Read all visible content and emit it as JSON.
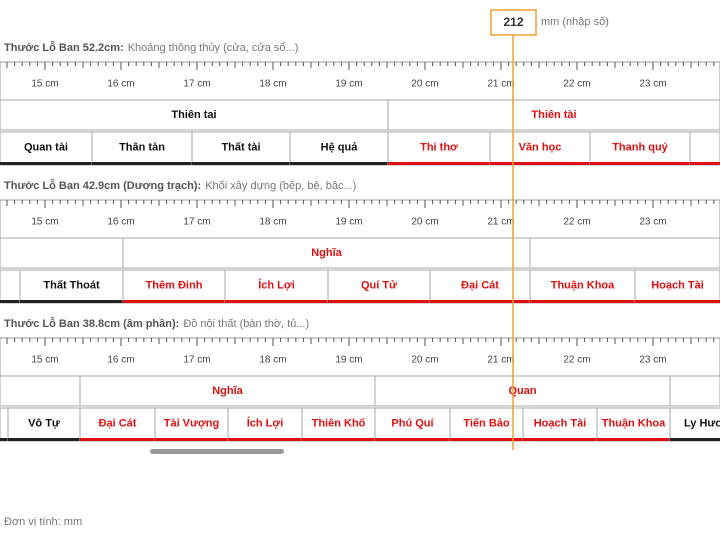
{
  "input": {
    "value": "212",
    "unit": "mm (nhập số)"
  },
  "scale_labels": [
    "15 cm",
    "16 cm",
    "17 cm",
    "18 cm",
    "19 cm",
    "20 cm",
    "21 cm",
    "22 cm",
    "23 cm"
  ],
  "rulers": [
    {
      "title": "Thước Lỗ Ban 52.2cm:",
      "subtitle": "Khoảng thông thủy (cửa, cửa sổ...)",
      "top": [
        "Thiên tai",
        "Thiên tài"
      ],
      "bottom": [
        "Quan tài",
        "Thân tàn",
        "Thất tài",
        "Hệ quả",
        "Thi thơ",
        "Văn học",
        "Thanh quý"
      ]
    },
    {
      "title": "Thước Lỗ Ban 42.9cm (Dương trạch):",
      "subtitle": "Khối xây dựng (bếp, bệ, bậc...)",
      "top": [
        "Nghĩa"
      ],
      "bottom": [
        "Thất Thoát",
        "Thêm Đinh",
        "Ích Lợi",
        "Quí Tử",
        "Đại Cát",
        "Thuận Khoa",
        "Hoạch Tài"
      ]
    },
    {
      "title": "Thước Lỗ Ban 38.8cm (âm phần):",
      "subtitle": "Đồ nội thất (bàn thờ, tủ...)",
      "top": [
        "Nghĩa",
        "Quan"
      ],
      "bottom": [
        "Vô Tự",
        "Đại Cát",
        "Tài Vượng",
        "Ích Lợi",
        "Thiên Khố",
        "Phú Quí",
        "Tiến Bảo",
        "Hoạch Tài",
        "Thuận Khoa",
        "Ly Hươ"
      ]
    }
  ],
  "footer": "Đơn vị tính: mm"
}
